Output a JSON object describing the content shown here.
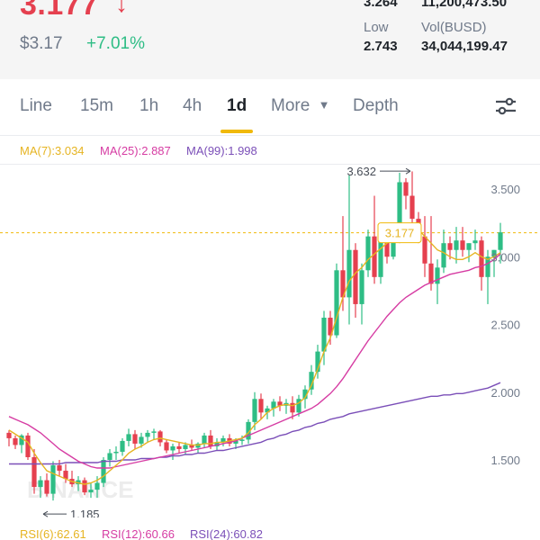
{
  "header": {
    "price": "3.177",
    "price_usd": "$3.17",
    "change": "+7.01%",
    "high_value": "3.264",
    "vol_coin_value": "11,200,473.50",
    "low_label": "Low",
    "low_value": "2.743",
    "vol_busd_label": "Vol(BUSD)",
    "vol_busd_value": "34,044,199.47"
  },
  "tabs": [
    {
      "label": "Line"
    },
    {
      "label": "15m"
    },
    {
      "label": "1h"
    },
    {
      "label": "4h"
    },
    {
      "label": "1d",
      "active": true
    },
    {
      "label": "More"
    },
    {
      "label": "Depth"
    }
  ],
  "indicators": {
    "ma7": "MA(7):3.034",
    "ma25": "MA(25):2.887",
    "ma99": "MA(99):1.998",
    "rsi6": "RSI(6):62.61",
    "rsi12": "RSI(12):60.66",
    "rsi24": "RSI(24):60.82"
  },
  "colors": {
    "up": "#2ebd85",
    "down": "#e5404f",
    "accent": "#f0b90b",
    "ma7": "#e6b422",
    "ma25": "#d63ca3",
    "ma99": "#7b4fb8"
  },
  "chart_data": {
    "type": "candlestick",
    "y_ticks": [
      "3.500",
      "3.000",
      "2.500",
      "2.000",
      "1.500"
    ],
    "ylim": [
      1.2,
      3.75
    ],
    "max_label": "3.632",
    "min_label": "1.185",
    "last_price_label": "3.177",
    "watermark": "BINANCE",
    "candles": [
      [
        1.7,
        1.72,
        1.6,
        1.66
      ],
      [
        1.66,
        1.68,
        1.58,
        1.61
      ],
      [
        1.61,
        1.69,
        1.55,
        1.68
      ],
      [
        1.68,
        1.7,
        1.5,
        1.52
      ],
      [
        1.52,
        1.58,
        1.25,
        1.3
      ],
      [
        1.3,
        1.38,
        1.22,
        1.35
      ],
      [
        1.35,
        1.4,
        1.23,
        1.25
      ],
      [
        1.25,
        1.49,
        1.2,
        1.46
      ],
      [
        1.46,
        1.5,
        1.38,
        1.42
      ],
      [
        1.42,
        1.47,
        1.33,
        1.36
      ],
      [
        1.36,
        1.42,
        1.3,
        1.32
      ],
      [
        1.32,
        1.38,
        1.27,
        1.35
      ],
      [
        1.35,
        1.37,
        1.24,
        1.26
      ],
      [
        1.26,
        1.33,
        1.22,
        1.28
      ],
      [
        1.28,
        1.38,
        1.22,
        1.33
      ],
      [
        1.33,
        1.52,
        1.3,
        1.5
      ],
      [
        1.5,
        1.58,
        1.45,
        1.55
      ],
      [
        1.55,
        1.6,
        1.5,
        1.56
      ],
      [
        1.56,
        1.66,
        1.53,
        1.64
      ],
      [
        1.64,
        1.73,
        1.6,
        1.69
      ],
      [
        1.69,
        1.72,
        1.58,
        1.62
      ],
      [
        1.62,
        1.7,
        1.59,
        1.67
      ],
      [
        1.67,
        1.72,
        1.63,
        1.7
      ],
      [
        1.7,
        1.73,
        1.65,
        1.71
      ],
      [
        1.71,
        1.72,
        1.6,
        1.63
      ],
      [
        1.63,
        1.65,
        1.55,
        1.57
      ],
      [
        1.57,
        1.62,
        1.5,
        1.6
      ],
      [
        1.6,
        1.63,
        1.55,
        1.58
      ],
      [
        1.58,
        1.63,
        1.54,
        1.61
      ],
      [
        1.61,
        1.65,
        1.57,
        1.59
      ],
      [
        1.59,
        1.63,
        1.55,
        1.62
      ],
      [
        1.62,
        1.7,
        1.59,
        1.68
      ],
      [
        1.68,
        1.72,
        1.58,
        1.6
      ],
      [
        1.6,
        1.66,
        1.57,
        1.63
      ],
      [
        1.63,
        1.68,
        1.6,
        1.66
      ],
      [
        1.66,
        1.69,
        1.6,
        1.62
      ],
      [
        1.62,
        1.66,
        1.58,
        1.64
      ],
      [
        1.64,
        1.68,
        1.61,
        1.65
      ],
      [
        1.65,
        1.8,
        1.62,
        1.78
      ],
      [
        1.78,
        2.0,
        1.72,
        1.95
      ],
      [
        1.95,
        1.99,
        1.8,
        1.85
      ],
      [
        1.85,
        1.9,
        1.8,
        1.88
      ],
      [
        1.88,
        1.95,
        1.82,
        1.93
      ],
      [
        1.93,
        1.97,
        1.86,
        1.9
      ],
      [
        1.9,
        1.95,
        1.84,
        1.92
      ],
      [
        1.92,
        1.97,
        1.8,
        1.85
      ],
      [
        1.85,
        1.98,
        1.82,
        1.95
      ],
      [
        1.95,
        2.05,
        1.88,
        2.02
      ],
      [
        2.02,
        2.2,
        1.98,
        2.15
      ],
      [
        2.15,
        2.35,
        2.1,
        2.3
      ],
      [
        2.3,
        2.6,
        2.2,
        2.55
      ],
      [
        2.55,
        2.6,
        2.35,
        2.42
      ],
      [
        2.42,
        2.95,
        2.4,
        2.9
      ],
      [
        2.9,
        3.3,
        2.6,
        2.7
      ],
      [
        2.7,
        3.6,
        2.5,
        3.05
      ],
      [
        3.05,
        3.1,
        2.55,
        2.65
      ],
      [
        2.65,
        2.95,
        2.5,
        2.9
      ],
      [
        2.9,
        3.2,
        2.85,
        3.15
      ],
      [
        3.15,
        3.45,
        2.8,
        2.85
      ],
      [
        2.85,
        3.25,
        2.8,
        3.15
      ],
      [
        3.15,
        3.25,
        2.95,
        3.0
      ],
      [
        3.0,
        3.25,
        2.98,
        3.2
      ],
      [
        3.2,
        3.62,
        3.1,
        3.55
      ],
      [
        3.55,
        3.58,
        3.35,
        3.45
      ],
      [
        3.45,
        3.63,
        3.2,
        3.28
      ],
      [
        3.28,
        3.33,
        3.1,
        3.15
      ],
      [
        3.15,
        3.3,
        2.85,
        2.95
      ],
      [
        2.95,
        3.3,
        2.75,
        2.8
      ],
      [
        2.8,
        2.98,
        2.65,
        2.92
      ],
      [
        2.92,
        3.2,
        2.88,
        3.1
      ],
      [
        3.1,
        3.15,
        2.98,
        3.05
      ],
      [
        3.05,
        3.22,
        2.95,
        3.12
      ],
      [
        3.12,
        3.22,
        3.0,
        3.05
      ],
      [
        3.05,
        3.1,
        2.96,
        3.1
      ],
      [
        3.1,
        3.2,
        3.05,
        3.12
      ],
      [
        3.12,
        3.15,
        2.75,
        2.85
      ],
      [
        2.85,
        3.05,
        2.65,
        3.0
      ],
      [
        3.0,
        3.05,
        2.85,
        3.05
      ],
      [
        3.05,
        3.25,
        2.95,
        3.18
      ]
    ],
    "ma7_series": [
      1.72,
      1.69,
      1.66,
      1.63,
      1.55,
      1.48,
      1.42,
      1.4,
      1.38,
      1.36,
      1.34,
      1.33,
      1.32,
      1.33,
      1.35,
      1.38,
      1.42,
      1.46,
      1.5,
      1.55,
      1.58,
      1.6,
      1.63,
      1.65,
      1.66,
      1.65,
      1.64,
      1.63,
      1.62,
      1.61,
      1.61,
      1.62,
      1.62,
      1.63,
      1.63,
      1.64,
      1.65,
      1.66,
      1.7,
      1.76,
      1.8,
      1.85,
      1.88,
      1.9,
      1.91,
      1.9,
      1.92,
      1.96,
      2.05,
      2.17,
      2.3,
      2.4,
      2.55,
      2.7,
      2.82,
      2.88,
      2.92,
      2.98,
      3.02,
      3.06,
      3.1,
      3.14,
      3.2,
      3.22,
      3.22,
      3.2,
      3.15,
      3.1,
      3.05,
      3.03,
      3.0,
      2.98,
      2.98,
      3.0,
      3.03,
      3.0,
      2.98,
      3.0,
      3.03
    ],
    "ma25_series": [
      1.82,
      1.8,
      1.78,
      1.76,
      1.73,
      1.7,
      1.66,
      1.62,
      1.58,
      1.55,
      1.52,
      1.49,
      1.47,
      1.45,
      1.44,
      1.44,
      1.44,
      1.45,
      1.46,
      1.47,
      1.48,
      1.49,
      1.5,
      1.51,
      1.52,
      1.53,
      1.54,
      1.55,
      1.56,
      1.57,
      1.58,
      1.59,
      1.6,
      1.61,
      1.62,
      1.63,
      1.64,
      1.66,
      1.68,
      1.7,
      1.72,
      1.74,
      1.76,
      1.78,
      1.8,
      1.82,
      1.84,
      1.86,
      1.88,
      1.91,
      1.95,
      1.99,
      2.04,
      2.1,
      2.17,
      2.24,
      2.31,
      2.38,
      2.44,
      2.5,
      2.56,
      2.61,
      2.66,
      2.7,
      2.73,
      2.76,
      2.79,
      2.81,
      2.83,
      2.85,
      2.87,
      2.88,
      2.89,
      2.9,
      2.92,
      2.93,
      2.95,
      2.98,
      3.02
    ],
    "ma99_series": [
      1.47,
      1.47,
      1.47,
      1.47,
      1.47,
      1.47,
      1.47,
      1.47,
      1.47,
      1.48,
      1.48,
      1.48,
      1.48,
      1.48,
      1.48,
      1.49,
      1.49,
      1.49,
      1.5,
      1.5,
      1.5,
      1.51,
      1.51,
      1.51,
      1.52,
      1.52,
      1.53,
      1.53,
      1.54,
      1.54,
      1.55,
      1.55,
      1.56,
      1.57,
      1.57,
      1.58,
      1.59,
      1.6,
      1.61,
      1.62,
      1.63,
      1.65,
      1.66,
      1.68,
      1.69,
      1.71,
      1.72,
      1.74,
      1.75,
      1.77,
      1.78,
      1.8,
      1.81,
      1.82,
      1.84,
      1.85,
      1.86,
      1.87,
      1.88,
      1.89,
      1.9,
      1.91,
      1.92,
      1.93,
      1.94,
      1.95,
      1.96,
      1.97,
      1.97,
      1.98,
      1.98,
      1.99,
      1.99,
      2.0,
      2.01,
      2.02,
      2.03,
      2.05,
      2.07
    ]
  }
}
